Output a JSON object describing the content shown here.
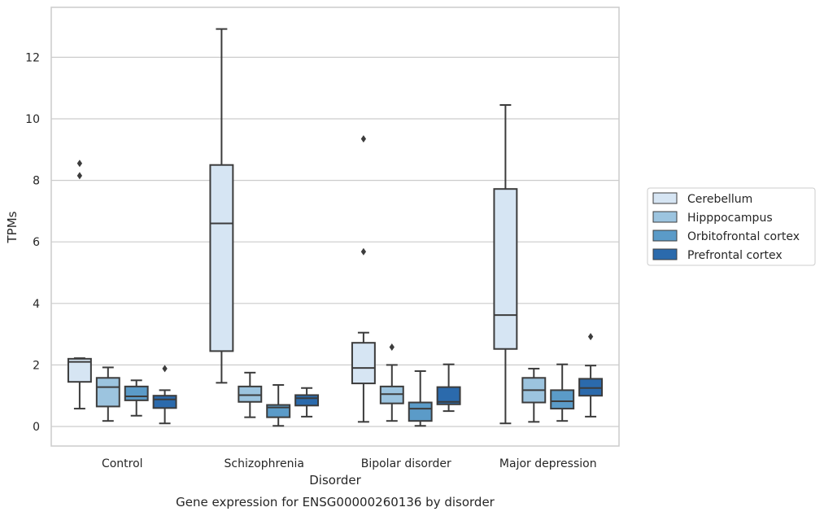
{
  "chart_data": {
    "type": "box",
    "title": "",
    "caption": "Gene expression for ENSG00000260136 by disorder",
    "xlabel": "Disorder",
    "ylabel": "TPMs",
    "ylim": [
      -0.6,
      13.6
    ],
    "yticks": [
      0,
      2,
      4,
      6,
      8,
      10,
      12
    ],
    "grid": true,
    "legend_position": "right",
    "categories": [
      "Control",
      "Schizophrenia",
      "Bipolar disorder",
      "Major depression"
    ],
    "series": [
      {
        "name": "Cerebellum",
        "color": "#d6e5f3",
        "boxes": [
          {
            "whislo": 0.58,
            "q1": 1.45,
            "med": 2.1,
            "q3": 2.2,
            "whishi": 2.22,
            "fliers": [
              8.15,
              8.55
            ]
          },
          {
            "whislo": 1.42,
            "q1": 2.45,
            "med": 6.6,
            "q3": 8.5,
            "whishi": 12.92,
            "fliers": []
          },
          {
            "whislo": 0.15,
            "q1": 1.4,
            "med": 1.9,
            "q3": 2.72,
            "whishi": 3.05,
            "fliers": [
              5.68,
              9.35
            ]
          },
          {
            "whislo": 0.1,
            "q1": 2.52,
            "med": 3.62,
            "q3": 7.72,
            "whishi": 10.45,
            "fliers": []
          }
        ]
      },
      {
        "name": "Hipppocampus",
        "color": "#9cc4df",
        "boxes": [
          {
            "whislo": 0.18,
            "q1": 0.65,
            "med": 1.28,
            "q3": 1.58,
            "whishi": 1.92,
            "fliers": []
          },
          {
            "whislo": 0.3,
            "q1": 0.8,
            "med": 1.02,
            "q3": 1.3,
            "whishi": 1.75,
            "fliers": []
          },
          {
            "whislo": 0.18,
            "q1": 0.75,
            "med": 1.05,
            "q3": 1.3,
            "whishi": 2.0,
            "fliers": [
              2.58
            ]
          },
          {
            "whislo": 0.15,
            "q1": 0.78,
            "med": 1.18,
            "q3": 1.58,
            "whishi": 1.88,
            "fliers": []
          }
        ]
      },
      {
        "name": "Orbitofrontal cortex",
        "color": "#5b9bc8",
        "boxes": [
          {
            "whislo": 0.35,
            "q1": 0.85,
            "med": 0.98,
            "q3": 1.3,
            "whishi": 1.5,
            "fliers": []
          },
          {
            "whislo": 0.02,
            "q1": 0.3,
            "med": 0.62,
            "q3": 0.7,
            "whishi": 1.35,
            "fliers": []
          },
          {
            "whislo": 0.02,
            "q1": 0.18,
            "med": 0.58,
            "q3": 0.78,
            "whishi": 1.8,
            "fliers": []
          },
          {
            "whislo": 0.18,
            "q1": 0.58,
            "med": 0.82,
            "q3": 1.18,
            "whishi": 2.02,
            "fliers": []
          }
        ]
      },
      {
        "name": "Prefrontal cortex",
        "color": "#2b6aac",
        "boxes": [
          {
            "whislo": 0.1,
            "q1": 0.6,
            "med": 0.88,
            "q3": 1.0,
            "whishi": 1.18,
            "fliers": [
              1.88
            ]
          },
          {
            "whislo": 0.32,
            "q1": 0.68,
            "med": 0.92,
            "q3": 1.02,
            "whishi": 1.25,
            "fliers": []
          },
          {
            "whislo": 0.5,
            "q1": 0.72,
            "med": 0.8,
            "q3": 1.28,
            "whishi": 2.02,
            "fliers": []
          },
          {
            "whislo": 0.32,
            "q1": 1.0,
            "med": 1.25,
            "q3": 1.55,
            "whishi": 1.98,
            "fliers": [
              2.92
            ]
          }
        ]
      }
    ]
  }
}
